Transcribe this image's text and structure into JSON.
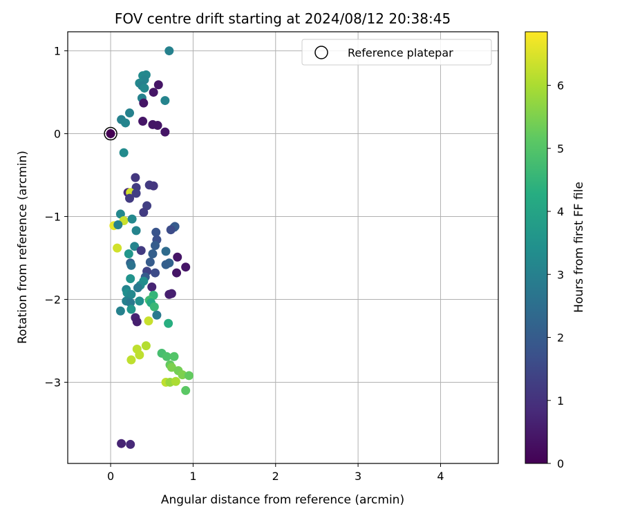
{
  "chart_data": {
    "type": "scatter",
    "title": "FOV centre drift starting at 2024/08/12 20:38:45",
    "xlabel": "Angular distance from reference (arcmin)",
    "ylabel": "Rotation from reference (arcmin)",
    "xlim": [
      -0.52,
      4.7
    ],
    "ylim": [
      -3.98,
      1.23
    ],
    "xticks": [
      0,
      1,
      2,
      3,
      4
    ],
    "yticks": [
      -3,
      -2,
      -1,
      0,
      1
    ],
    "grid": true,
    "colormap": "viridis",
    "colorbar": {
      "label": "Hours from first FF file",
      "min": 0,
      "max": 6.85,
      "ticks": [
        0,
        1,
        2,
        3,
        4,
        5,
        6
      ]
    },
    "legend": {
      "position": "top-right",
      "entries": [
        "Reference platepar"
      ]
    },
    "reference_point": {
      "x": 0,
      "y": 0,
      "label": "Reference platepar"
    },
    "points": [
      [
        0.0,
        0.0,
        0.0
      ],
      [
        0.71,
        1.0,
        3.0
      ],
      [
        0.39,
        0.7,
        3.3
      ],
      [
        0.43,
        0.71,
        3.2
      ],
      [
        0.41,
        0.65,
        3.1
      ],
      [
        0.35,
        0.61,
        3.2
      ],
      [
        0.38,
        0.58,
        3.0
      ],
      [
        0.41,
        0.55,
        3.2
      ],
      [
        0.58,
        0.59,
        0.4
      ],
      [
        0.52,
        0.5,
        0.4
      ],
      [
        0.38,
        0.43,
        3.0
      ],
      [
        0.4,
        0.37,
        0.4
      ],
      [
        0.66,
        0.4,
        3.1
      ],
      [
        0.23,
        0.25,
        3.0
      ],
      [
        0.13,
        0.17,
        3.0
      ],
      [
        0.18,
        0.13,
        3.1
      ],
      [
        0.39,
        0.15,
        0.4
      ],
      [
        0.51,
        0.11,
        0.4
      ],
      [
        0.57,
        0.1,
        0.4
      ],
      [
        0.66,
        0.02,
        0.4
      ],
      [
        0.16,
        -0.23,
        3.3
      ],
      [
        0.3,
        -0.53,
        1.1
      ],
      [
        0.31,
        -0.65,
        1.2
      ],
      [
        0.21,
        -0.71,
        0.8
      ],
      [
        0.24,
        -0.71,
        6.4
      ],
      [
        0.31,
        -0.72,
        1.3
      ],
      [
        0.23,
        -0.78,
        1.2
      ],
      [
        0.47,
        -0.62,
        1.2
      ],
      [
        0.52,
        -0.63,
        1.1
      ],
      [
        0.44,
        -0.87,
        1.3
      ],
      [
        0.4,
        -0.95,
        1.2
      ],
      [
        0.12,
        -0.97,
        3.2
      ],
      [
        0.16,
        -1.05,
        6.3
      ],
      [
        0.26,
        -1.03,
        3.2
      ],
      [
        0.04,
        -1.11,
        6.6
      ],
      [
        0.09,
        -1.1,
        3.0
      ],
      [
        0.31,
        -1.17,
        3.1
      ],
      [
        0.55,
        -1.19,
        1.8
      ],
      [
        0.78,
        -1.12,
        1.9
      ],
      [
        0.77,
        -1.13,
        2.0
      ],
      [
        0.73,
        -1.16,
        1.6
      ],
      [
        0.56,
        -1.28,
        1.7
      ],
      [
        0.54,
        -1.35,
        2.0
      ],
      [
        0.29,
        -1.36,
        3.1
      ],
      [
        0.08,
        -1.38,
        6.4
      ],
      [
        0.22,
        -1.45,
        3.6
      ],
      [
        0.37,
        -1.41,
        1.2
      ],
      [
        0.67,
        -1.42,
        2.4
      ],
      [
        0.51,
        -1.45,
        2.1
      ],
      [
        0.48,
        -1.55,
        2.0
      ],
      [
        0.24,
        -1.56,
        2.2
      ],
      [
        0.25,
        -1.59,
        2.6
      ],
      [
        0.71,
        -1.56,
        2.2
      ],
      [
        0.67,
        -1.58,
        2.1
      ],
      [
        0.81,
        -1.49,
        0.4
      ],
      [
        0.91,
        -1.61,
        0.4
      ],
      [
        0.8,
        -1.68,
        0.4
      ],
      [
        0.54,
        -1.68,
        1.6
      ],
      [
        0.44,
        -1.66,
        1.4
      ],
      [
        0.42,
        -1.73,
        2.0
      ],
      [
        0.4,
        -1.78,
        3.4
      ],
      [
        0.24,
        -1.75,
        3.5
      ],
      [
        0.36,
        -1.83,
        3.3
      ],
      [
        0.5,
        -1.85,
        0.7
      ],
      [
        0.33,
        -1.86,
        2.8
      ],
      [
        0.19,
        -1.88,
        3.1
      ],
      [
        0.2,
        -1.92,
        3.4
      ],
      [
        0.25,
        -1.94,
        3.2
      ],
      [
        0.74,
        -1.93,
        0.6
      ],
      [
        0.71,
        -1.94,
        0.6
      ],
      [
        0.52,
        -1.95,
        4.5
      ],
      [
        0.47,
        -2.01,
        4.7
      ],
      [
        0.35,
        -2.02,
        3.4
      ],
      [
        0.19,
        -2.02,
        3.0
      ],
      [
        0.24,
        -2.04,
        2.8
      ],
      [
        0.49,
        -2.04,
        4.2
      ],
      [
        0.53,
        -2.09,
        4.6
      ],
      [
        0.25,
        -2.12,
        3.6
      ],
      [
        0.12,
        -2.14,
        3.0
      ],
      [
        0.56,
        -2.19,
        2.8
      ],
      [
        0.3,
        -2.22,
        0.7
      ],
      [
        0.32,
        -2.27,
        0.6
      ],
      [
        0.46,
        -2.26,
        6.3
      ],
      [
        0.7,
        -2.29,
        4.3
      ],
      [
        0.43,
        -2.56,
        6.1
      ],
      [
        0.32,
        -2.6,
        6.2
      ],
      [
        0.35,
        -2.67,
        6.2
      ],
      [
        0.25,
        -2.73,
        6.2
      ],
      [
        0.62,
        -2.65,
        4.8
      ],
      [
        0.68,
        -2.69,
        4.9
      ],
      [
        0.77,
        -2.69,
        5.0
      ],
      [
        0.72,
        -2.79,
        5.2
      ],
      [
        0.74,
        -2.82,
        5.5
      ],
      [
        0.82,
        -2.86,
        5.4
      ],
      [
        0.87,
        -2.91,
        5.5
      ],
      [
        0.95,
        -2.92,
        5.2
      ],
      [
        0.67,
        -3.0,
        6.2
      ],
      [
        0.72,
        -3.0,
        5.8
      ],
      [
        0.79,
        -2.99,
        6.0
      ],
      [
        0.91,
        -3.1,
        5.1
      ],
      [
        0.13,
        -3.74,
        0.7
      ],
      [
        0.24,
        -3.75,
        0.8
      ]
    ]
  }
}
